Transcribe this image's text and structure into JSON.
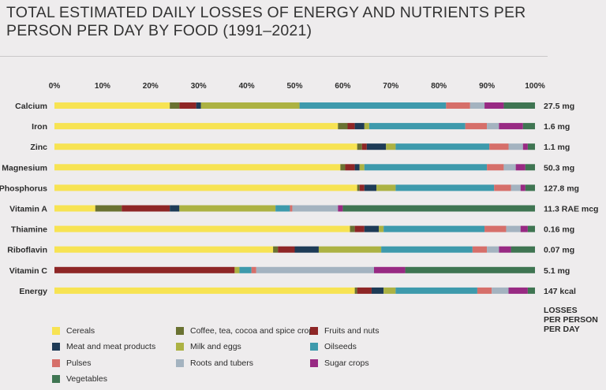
{
  "title": "TOTAL ESTIMATED DAILY LOSSES OF ENERGY AND NUTRIENTS PER PERSON PER DAY BY FOOD (1991–2021)",
  "losses_header": [
    "LOSSES",
    "PER PERSON",
    "PER DAY"
  ],
  "colors": {
    "Cereals": "#f7e353",
    "Coffee, tea, cocoa and spice crops": "#6a7232",
    "Fruits and nuts": "#8e2626",
    "Meat and meat products": "#1e3b56",
    "Milk and eggs": "#acb243",
    "Oilseeds": "#3e9aac",
    "Pulses": "#d66f6a",
    "Roots and tubers": "#a4b3c0",
    "Sugar crops": "#982a83",
    "Vegetables": "#3f7552"
  },
  "chart_data": {
    "type": "bar",
    "orientation": "horizontal",
    "stacked": true,
    "title": "TOTAL ESTIMATED DAILY LOSSES OF ENERGY AND NUTRIENTS PER PERSON PER DAY BY FOOD (1991–2021)",
    "x_ticks": [
      "0%",
      "10%",
      "20%",
      "30%",
      "40%",
      "50%",
      "60%",
      "70%",
      "80%",
      "90%",
      "100%"
    ],
    "xlim": [
      0,
      100
    ],
    "legend_position": "bottom",
    "categories": [
      "Calcium",
      "Iron",
      "Zinc",
      "Magnesium",
      "Phosphorus",
      "Vitamin A",
      "Thiamine",
      "Riboflavin",
      "Vitamin C",
      "Energy"
    ],
    "totals": [
      "27.5 mg",
      "1.6 mg",
      "1.1 mg",
      "50.3 mg",
      "127.8 mg",
      "11.3 RAE mcg",
      "0.16 mg",
      "0.07 mg",
      "5.1 mg",
      "147 kcal"
    ],
    "series": [
      {
        "name": "Cereals",
        "values": [
          24.0,
          59.0,
          63.0,
          59.5,
          63.0,
          8.5,
          61.5,
          45.5,
          0.0,
          62.5
        ]
      },
      {
        "name": "Coffee, tea, cocoa and spice crops",
        "values": [
          2.0,
          2.0,
          1.0,
          1.0,
          0.5,
          5.5,
          1.0,
          1.0,
          0.0,
          0.5
        ]
      },
      {
        "name": "Fruits and nuts",
        "values": [
          3.5,
          1.5,
          1.0,
          2.0,
          1.0,
          10.0,
          2.0,
          3.5,
          37.5,
          3.0
        ]
      },
      {
        "name": "Meat and meat products",
        "values": [
          1.0,
          2.0,
          4.0,
          1.0,
          2.5,
          2.0,
          3.0,
          5.0,
          0.0,
          2.5
        ]
      },
      {
        "name": "Milk and eggs",
        "values": [
          20.5,
          1.0,
          2.0,
          1.0,
          4.0,
          20.0,
          1.0,
          13.0,
          1.0,
          2.5
        ]
      },
      {
        "name": "Oilseeds",
        "values": [
          30.5,
          20.0,
          19.5,
          25.5,
          20.5,
          3.0,
          21.0,
          19.0,
          2.5,
          17.0
        ]
      },
      {
        "name": "Pulses",
        "values": [
          5.0,
          4.5,
          4.0,
          3.5,
          3.5,
          0.5,
          4.5,
          3.0,
          1.0,
          3.0
        ]
      },
      {
        "name": "Roots and tubers",
        "values": [
          3.0,
          2.5,
          3.0,
          2.5,
          2.0,
          9.5,
          3.0,
          2.5,
          24.5,
          3.5
        ]
      },
      {
        "name": "Sugar crops",
        "values": [
          4.0,
          5.0,
          1.0,
          2.0,
          1.0,
          1.0,
          1.5,
          2.5,
          6.5,
          4.0
        ]
      },
      {
        "name": "Vegetables",
        "values": [
          6.5,
          2.5,
          1.5,
          2.0,
          2.0,
          40.0,
          1.5,
          5.0,
          27.0,
          1.5
        ]
      }
    ]
  }
}
